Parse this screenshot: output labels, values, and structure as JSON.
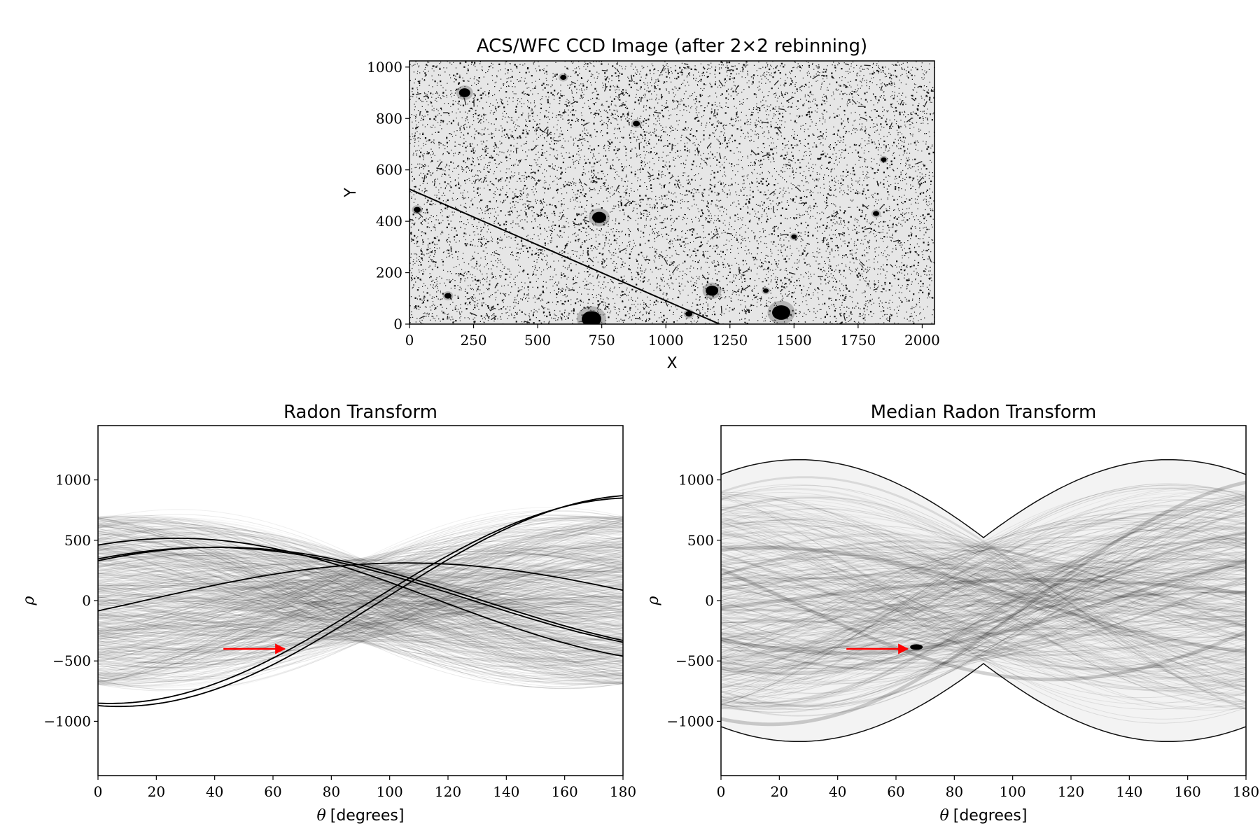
{
  "chart_data": [
    {
      "type": "heatmap",
      "title": "ACS/WFC CCD Image (after 2×2 rebinning)",
      "xlabel": "X",
      "ylabel": "Y",
      "xlim": [
        0,
        2048
      ],
      "ylim": [
        0,
        1024
      ],
      "xticks": [
        0,
        250,
        500,
        750,
        1000,
        1250,
        1500,
        1750,
        2000
      ],
      "yticks": [
        0,
        200,
        400,
        600,
        800,
        1000
      ],
      "colormap": "gray_r",
      "streak": {
        "x": [
          0,
          1210
        ],
        "y": [
          525,
          0
        ]
      },
      "bright_sources": [
        {
          "x": 710,
          "y": 20,
          "size": 28
        },
        {
          "x": 1450,
          "y": 45,
          "size": 26
        },
        {
          "x": 1180,
          "y": 130,
          "size": 18
        },
        {
          "x": 215,
          "y": 900,
          "size": 16
        },
        {
          "x": 740,
          "y": 415,
          "size": 20
        },
        {
          "x": 30,
          "y": 445,
          "size": 10
        },
        {
          "x": 600,
          "y": 960,
          "size": 9
        },
        {
          "x": 1820,
          "y": 430,
          "size": 9
        },
        {
          "x": 150,
          "y": 110,
          "size": 10
        },
        {
          "x": 1390,
          "y": 130,
          "size": 8
        },
        {
          "x": 885,
          "y": 780,
          "size": 10
        },
        {
          "x": 1500,
          "y": 340,
          "size": 8
        },
        {
          "x": 1090,
          "y": 40,
          "size": 10
        },
        {
          "x": 1850,
          "y": 640,
          "size": 8
        }
      ]
    },
    {
      "type": "heatmap",
      "title": "Radon Transform",
      "xlabel_symbol": "θ",
      "xlabel": "[degrees]",
      "ylabel": "ρ",
      "xlim": [
        0,
        180
      ],
      "ylim": [
        -1450,
        1450
      ],
      "xticks": [
        0,
        20,
        40,
        60,
        80,
        100,
        120,
        140,
        160,
        180
      ],
      "yticks": [
        -1000,
        -500,
        0,
        500,
        1000
      ],
      "ytick_labels": [
        "−1000",
        "−500",
        "0",
        "500",
        "1000"
      ],
      "colormap": "gray_r",
      "arrow": {
        "from": [
          43,
          -400
        ],
        "to": [
          64,
          -400
        ],
        "color": "#ff0000"
      },
      "strong_curves": [
        {
          "rho0": 460,
          "rho90": 235
        },
        {
          "rho0": 345,
          "rho90": 275
        },
        {
          "rho0": 330,
          "rho90": 295
        },
        {
          "rho0": -85,
          "rho90": 300
        },
        {
          "rho0": -850,
          "rho90": -60
        },
        {
          "rho0": -870,
          "rho90": -110
        }
      ]
    },
    {
      "type": "heatmap",
      "title": "Median Radon Transform",
      "xlabel_symbol": "θ",
      "xlabel": "[degrees]",
      "ylabel": "ρ",
      "xlim": [
        0,
        180
      ],
      "ylim": [
        -1450,
        1450
      ],
      "xticks": [
        0,
        20,
        40,
        60,
        80,
        100,
        120,
        140,
        160,
        180
      ],
      "yticks": [
        -1000,
        -500,
        0,
        500,
        1000
      ],
      "ytick_labels": [
        "−1000",
        "−500",
        "0",
        "500",
        "1000"
      ],
      "colormap": "gray_r",
      "arrow": {
        "from": [
          43,
          -400
        ],
        "to": [
          64,
          -400
        ],
        "color": "#ff0000"
      },
      "bright_spot": {
        "theta": 67,
        "rho": -385
      }
    }
  ]
}
